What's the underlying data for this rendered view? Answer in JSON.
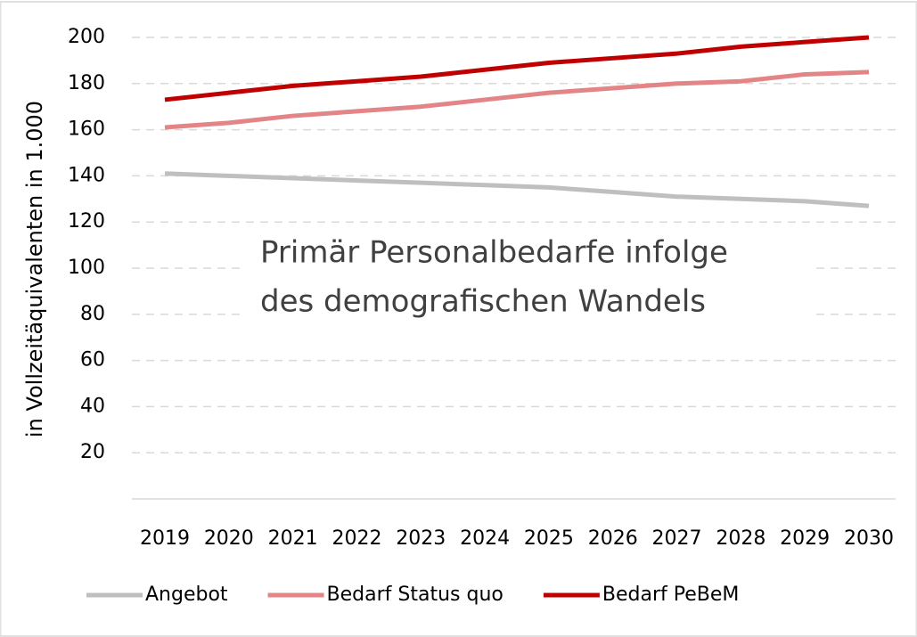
{
  "chart_data": {
    "type": "line",
    "ylabel": "in Vollzeitäquivalenten in 1.000",
    "annotation": [
      "Primär Personalbedarfe infolge",
      "des demografischen Wandels"
    ],
    "categories": [
      "2019",
      "2020",
      "2021",
      "2022",
      "2023",
      "2024",
      "2025",
      "2026",
      "2027",
      "2028",
      "2029",
      "2030"
    ],
    "series": [
      {
        "name": "Angebot",
        "color": "#bfbfbf",
        "values": [
          141,
          140,
          139,
          138,
          137,
          136,
          135,
          133,
          131,
          130,
          129,
          127
        ]
      },
      {
        "name": "Bedarf Status quo",
        "color": "#e38487",
        "values": [
          161,
          163,
          166,
          168,
          170,
          173,
          176,
          178,
          180,
          181,
          184,
          185
        ]
      },
      {
        "name": "Bedarf PeBeM",
        "color": "#c00000",
        "values": [
          173,
          176,
          179,
          181,
          183,
          186,
          189,
          191,
          193,
          196,
          198,
          200
        ]
      }
    ],
    "ylim": [
      0,
      200
    ],
    "yticks": [
      20,
      40,
      60,
      80,
      100,
      120,
      140,
      160,
      180,
      200
    ],
    "grid": true
  }
}
